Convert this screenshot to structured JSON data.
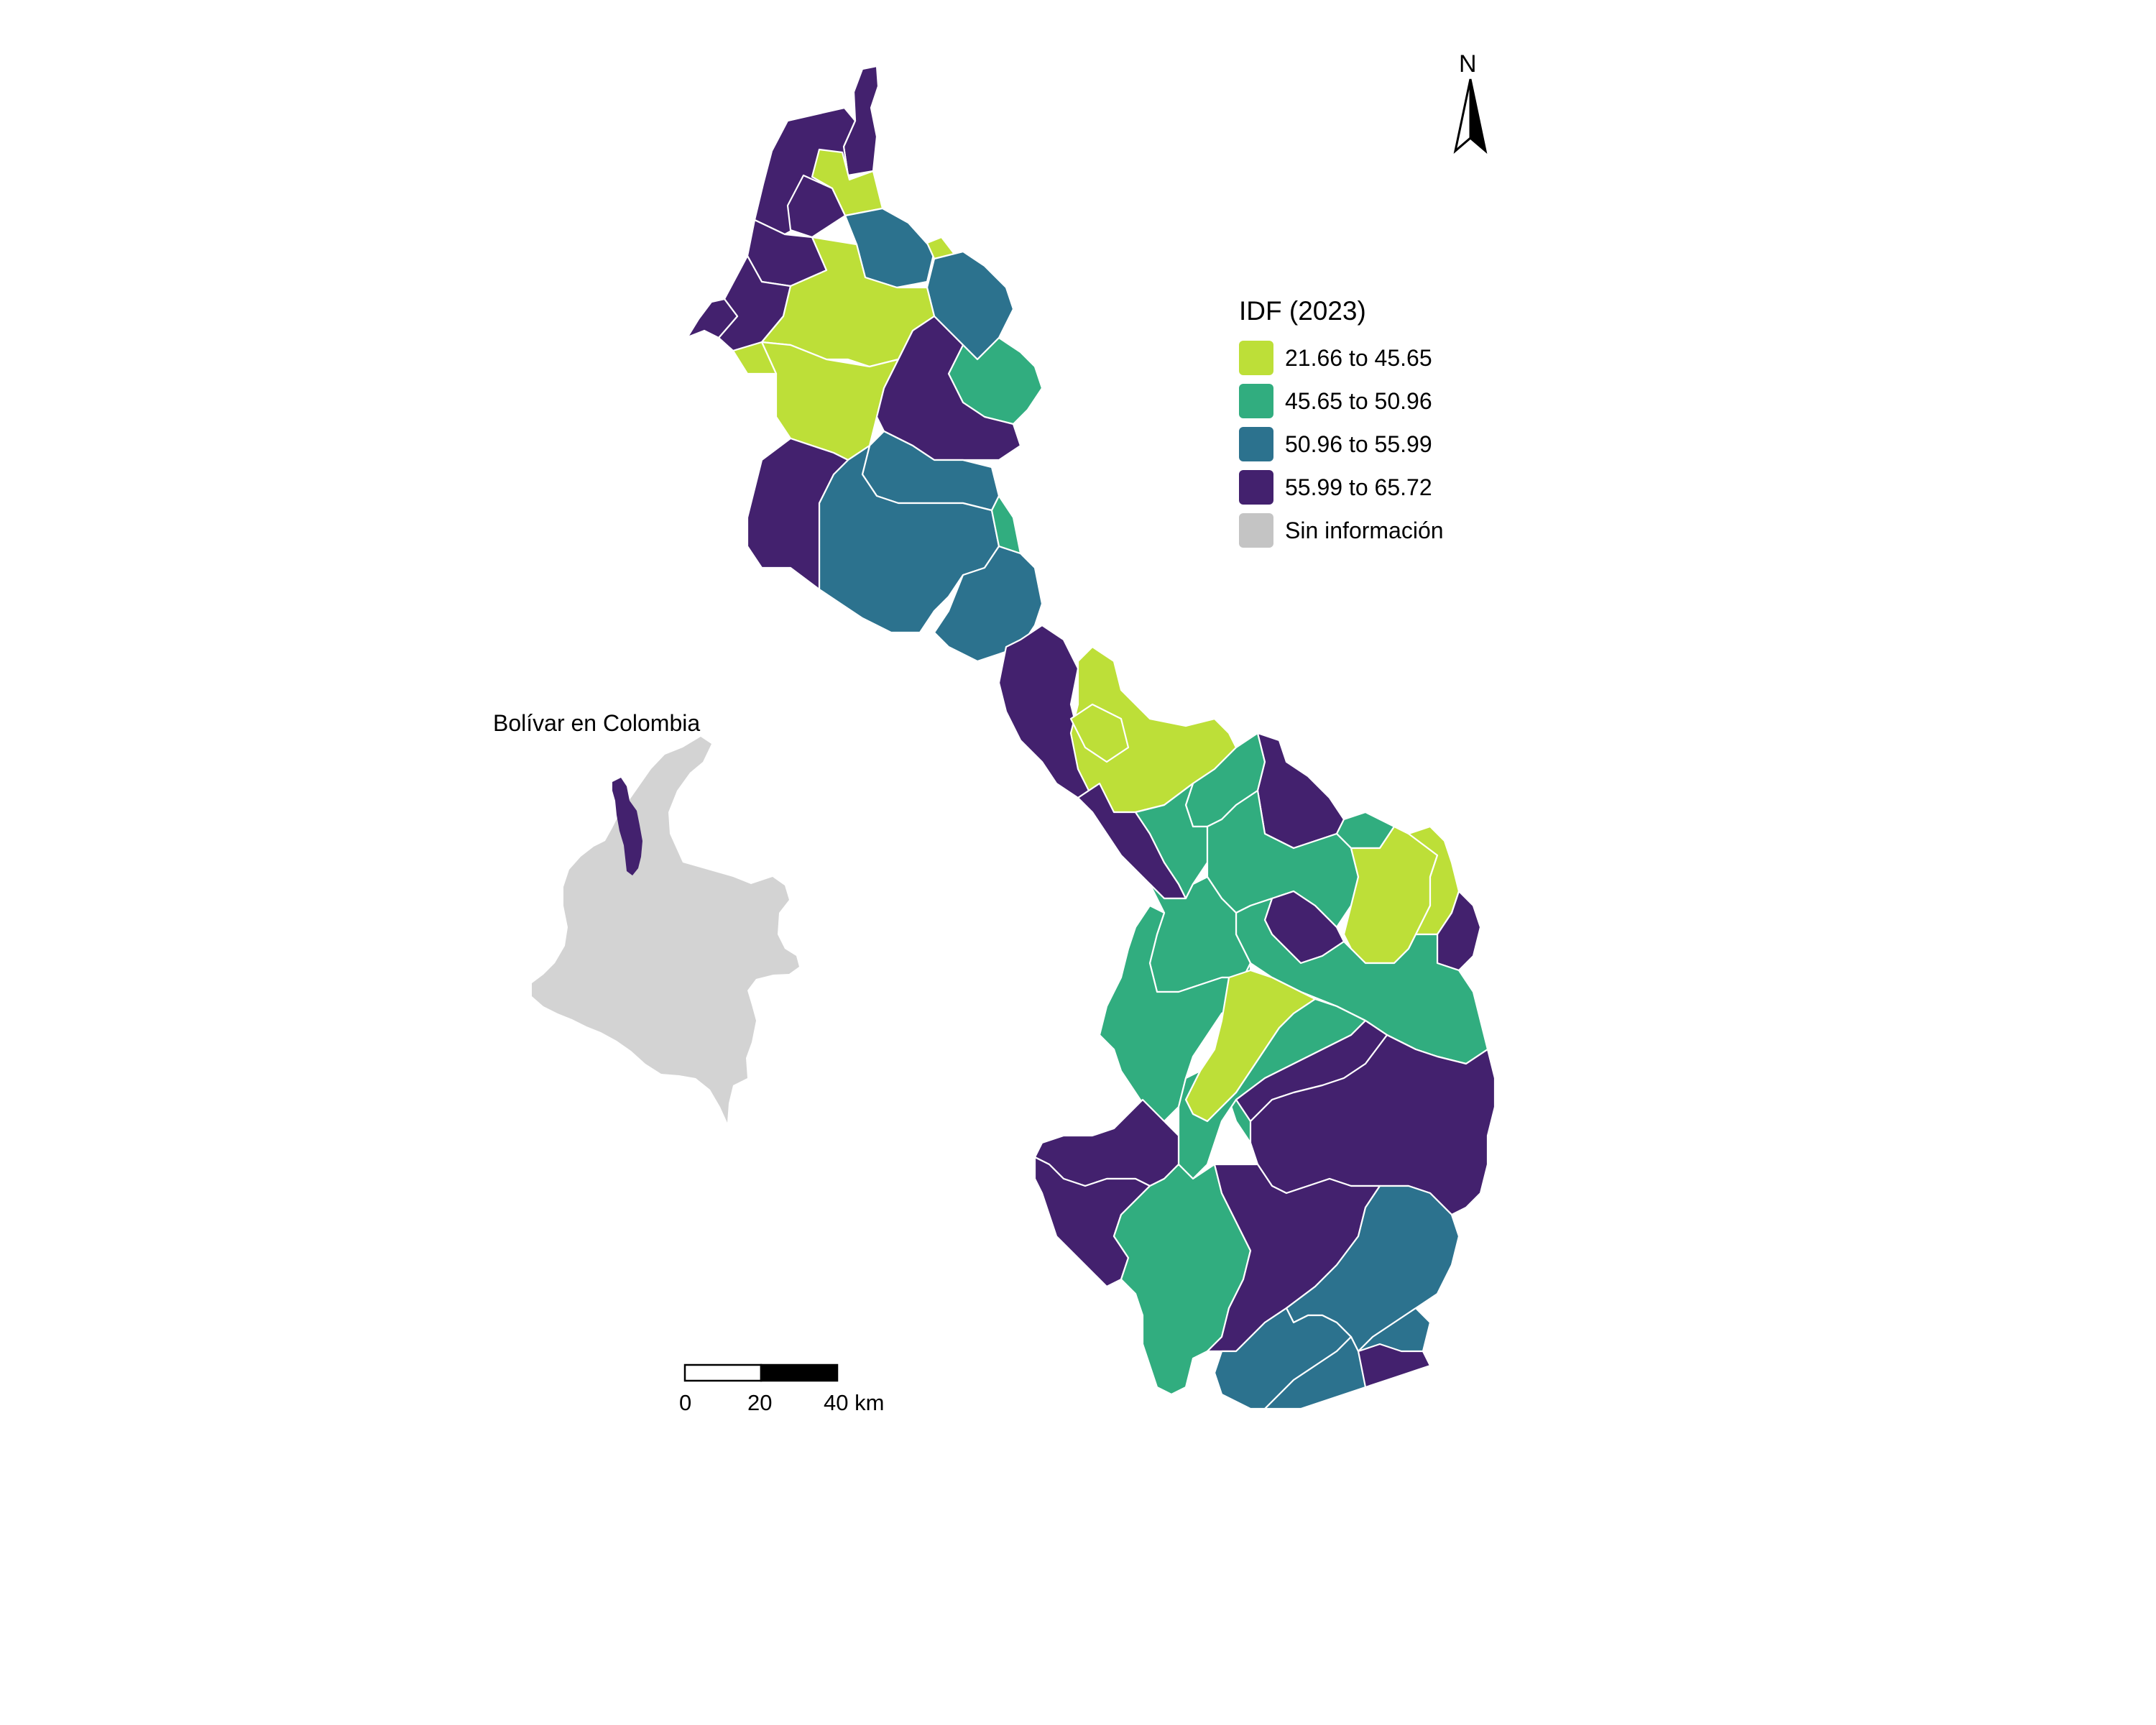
{
  "legend": {
    "title": "IDF (2023)",
    "items": [
      {
        "label": "21.66 to 45.65",
        "color": "#bddf38"
      },
      {
        "label": "45.65 to 50.96",
        "color": "#31ad7f"
      },
      {
        "label": "50.96 to 55.99",
        "color": "#2c728e"
      },
      {
        "label": "55.99 to 65.72",
        "color": "#43216e"
      },
      {
        "label": "Sin información",
        "color": "#c4c4c4"
      }
    ]
  },
  "inset": {
    "title": "Bolívar en Colombia",
    "country_color": "#d3d3d3",
    "highlight_color": "#43216e"
  },
  "north_arrow": {
    "label": "N"
  },
  "scale_bar": {
    "labels": [
      "0",
      "20",
      "40 km"
    ]
  }
}
